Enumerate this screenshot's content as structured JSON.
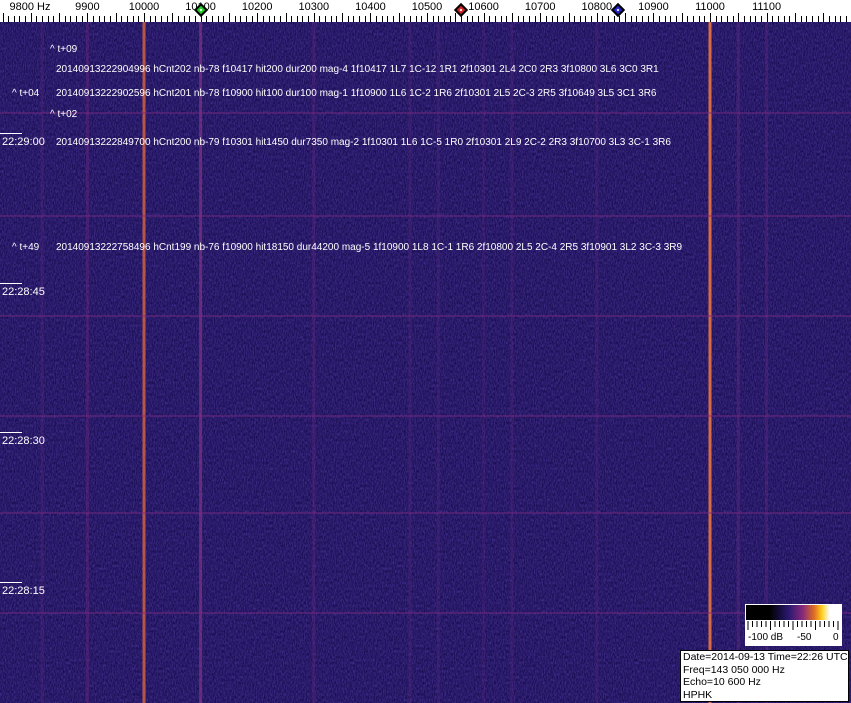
{
  "axis": {
    "unit_label": "9800 Hz",
    "ticks": [
      "9900",
      "10000",
      "10100",
      "10200",
      "10300",
      "10400",
      "10500",
      "10600",
      "10700",
      "10800",
      "10900",
      "11000",
      "11100"
    ],
    "markers": [
      {
        "name": "green",
        "freq_hz": 10100,
        "color": "#22cc22"
      },
      {
        "name": "red",
        "freq_hz": 10560,
        "color": "#cc2222"
      },
      {
        "name": "blue",
        "freq_hz": 10837,
        "color": "#2222cc"
      }
    ]
  },
  "time_labels": [
    "22:29:00",
    "22:28:45",
    "22:28:30",
    "22:28:15"
  ],
  "annotations": {
    "offsets": [
      "^ t+09",
      "^ t+04",
      "^ t+02",
      "^ t+49"
    ],
    "events": [
      "20140913222904996 hCnt202 nb-78 f10417 hit200 dur200 mag-4 1f10417 1L7 1C-12 1R1 2f10301 2L4 2C0 2R3 3f10800 3L6 3C0 3R1",
      "20140913222902596 hCnt201 nb-78 f10900 hit100 dur100 mag-1 1f10900 1L6 1C-2 1R6 2f10301 2L5 2C-3 2R5 3f10649 3L5 3C1 3R6",
      "20140913222849700 hCnt200 nb-79 f10301 hit1450 dur7350 mag-2 1f10301 1L6 1C-5 1R0 2f10301 2L9 2C-2 2R3 3f10700 3L3 3C-1 3R6",
      "20140913222758496 hCnt199 nb-76 f10900 hit18150 dur44200 mag-5 1f10900 1L8 1C-1 1R6 2f10800 2L5 2C-4 2R5 3f10901 3L2 3C-3 3R9"
    ]
  },
  "legend": {
    "labels": [
      "-100 dB",
      "-50",
      "0"
    ]
  },
  "info": {
    "datetime": "Date=2014-09-13 Time=22:26 UTC",
    "freq": "Freq=143 050 000 Hz",
    "echo": "Echo=10 600 Hz",
    "station": "HPHK"
  },
  "colors": {
    "background": "#1a0f55",
    "carrier": "#e07040"
  }
}
